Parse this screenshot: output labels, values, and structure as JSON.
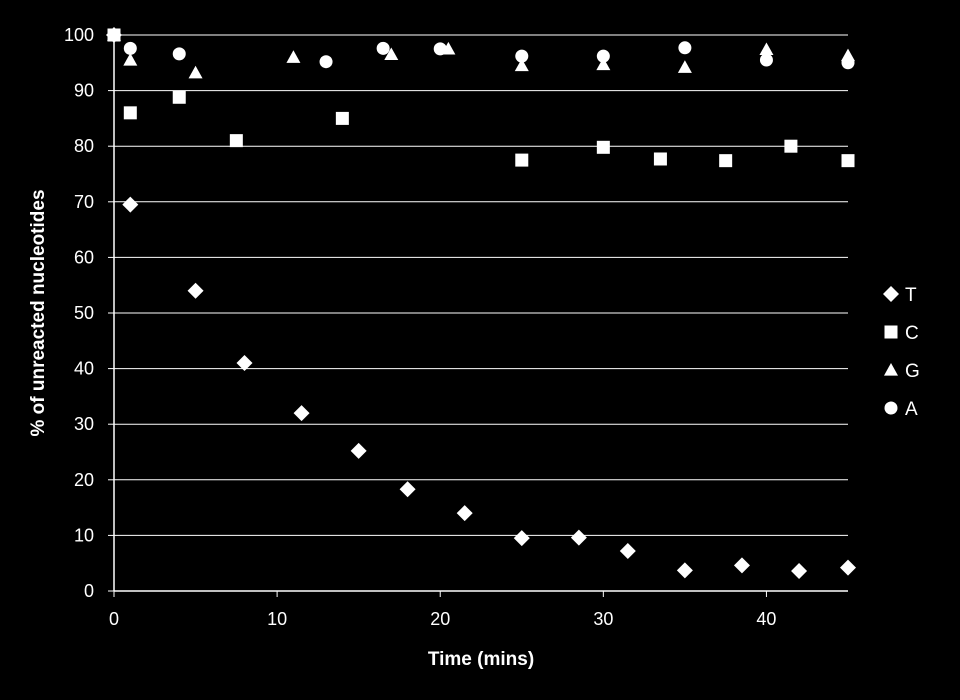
{
  "chart_data": {
    "type": "scatter",
    "title": "",
    "xlabel": "Time (mins)",
    "ylabel": "% of unreacted nucleotides",
    "xlim": [
      0,
      45
    ],
    "ylim": [
      0,
      100
    ],
    "x_ticks": [
      0,
      10,
      20,
      30,
      40
    ],
    "y_ticks": [
      0,
      10,
      20,
      30,
      40,
      50,
      60,
      70,
      80,
      90,
      100
    ],
    "grid": "horizontal",
    "legend_position": "right",
    "colors": {
      "background": "#000000",
      "foreground": "#ffffff",
      "grid": "#ffffff"
    },
    "series": [
      {
        "name": "T",
        "marker": "diamond",
        "points": [
          [
            0,
            100
          ],
          [
            1,
            69.5
          ],
          [
            5,
            54
          ],
          [
            8,
            41
          ],
          [
            11.5,
            32
          ],
          [
            15,
            25.2
          ],
          [
            18,
            18.3
          ],
          [
            21.5,
            14
          ],
          [
            25,
            9.5
          ],
          [
            28.5,
            9.6
          ],
          [
            31.5,
            7.2
          ],
          [
            35,
            3.7
          ],
          [
            38.5,
            4.6
          ],
          [
            42,
            3.6
          ],
          [
            45,
            4.2
          ]
        ]
      },
      {
        "name": "C",
        "marker": "square",
        "points": [
          [
            0,
            100
          ],
          [
            1,
            86
          ],
          [
            4,
            88.8
          ],
          [
            7.5,
            81
          ],
          [
            14,
            85
          ],
          [
            25,
            77.5
          ],
          [
            30,
            79.8
          ],
          [
            33.5,
            77.7
          ],
          [
            37.5,
            77.4
          ],
          [
            41.5,
            80
          ],
          [
            45,
            77.4
          ]
        ]
      },
      {
        "name": "G",
        "marker": "triangle",
        "points": [
          [
            0,
            100
          ],
          [
            1,
            95.5
          ],
          [
            5,
            93.2
          ],
          [
            11,
            96
          ],
          [
            17,
            96.5
          ],
          [
            20.5,
            97.5
          ],
          [
            25,
            94.5
          ],
          [
            30,
            94.7
          ],
          [
            35,
            94.2
          ],
          [
            40,
            97.4
          ],
          [
            45,
            96.3
          ]
        ]
      },
      {
        "name": "A",
        "marker": "circle",
        "points": [
          [
            0,
            100
          ],
          [
            1,
            97.6
          ],
          [
            4,
            96.6
          ],
          [
            13,
            95.2
          ],
          [
            16.5,
            97.6
          ],
          [
            20,
            97.5
          ],
          [
            25,
            96.2
          ],
          [
            30,
            96.2
          ],
          [
            35,
            97.7
          ],
          [
            40,
            95.5
          ],
          [
            45,
            95
          ]
        ]
      }
    ]
  }
}
